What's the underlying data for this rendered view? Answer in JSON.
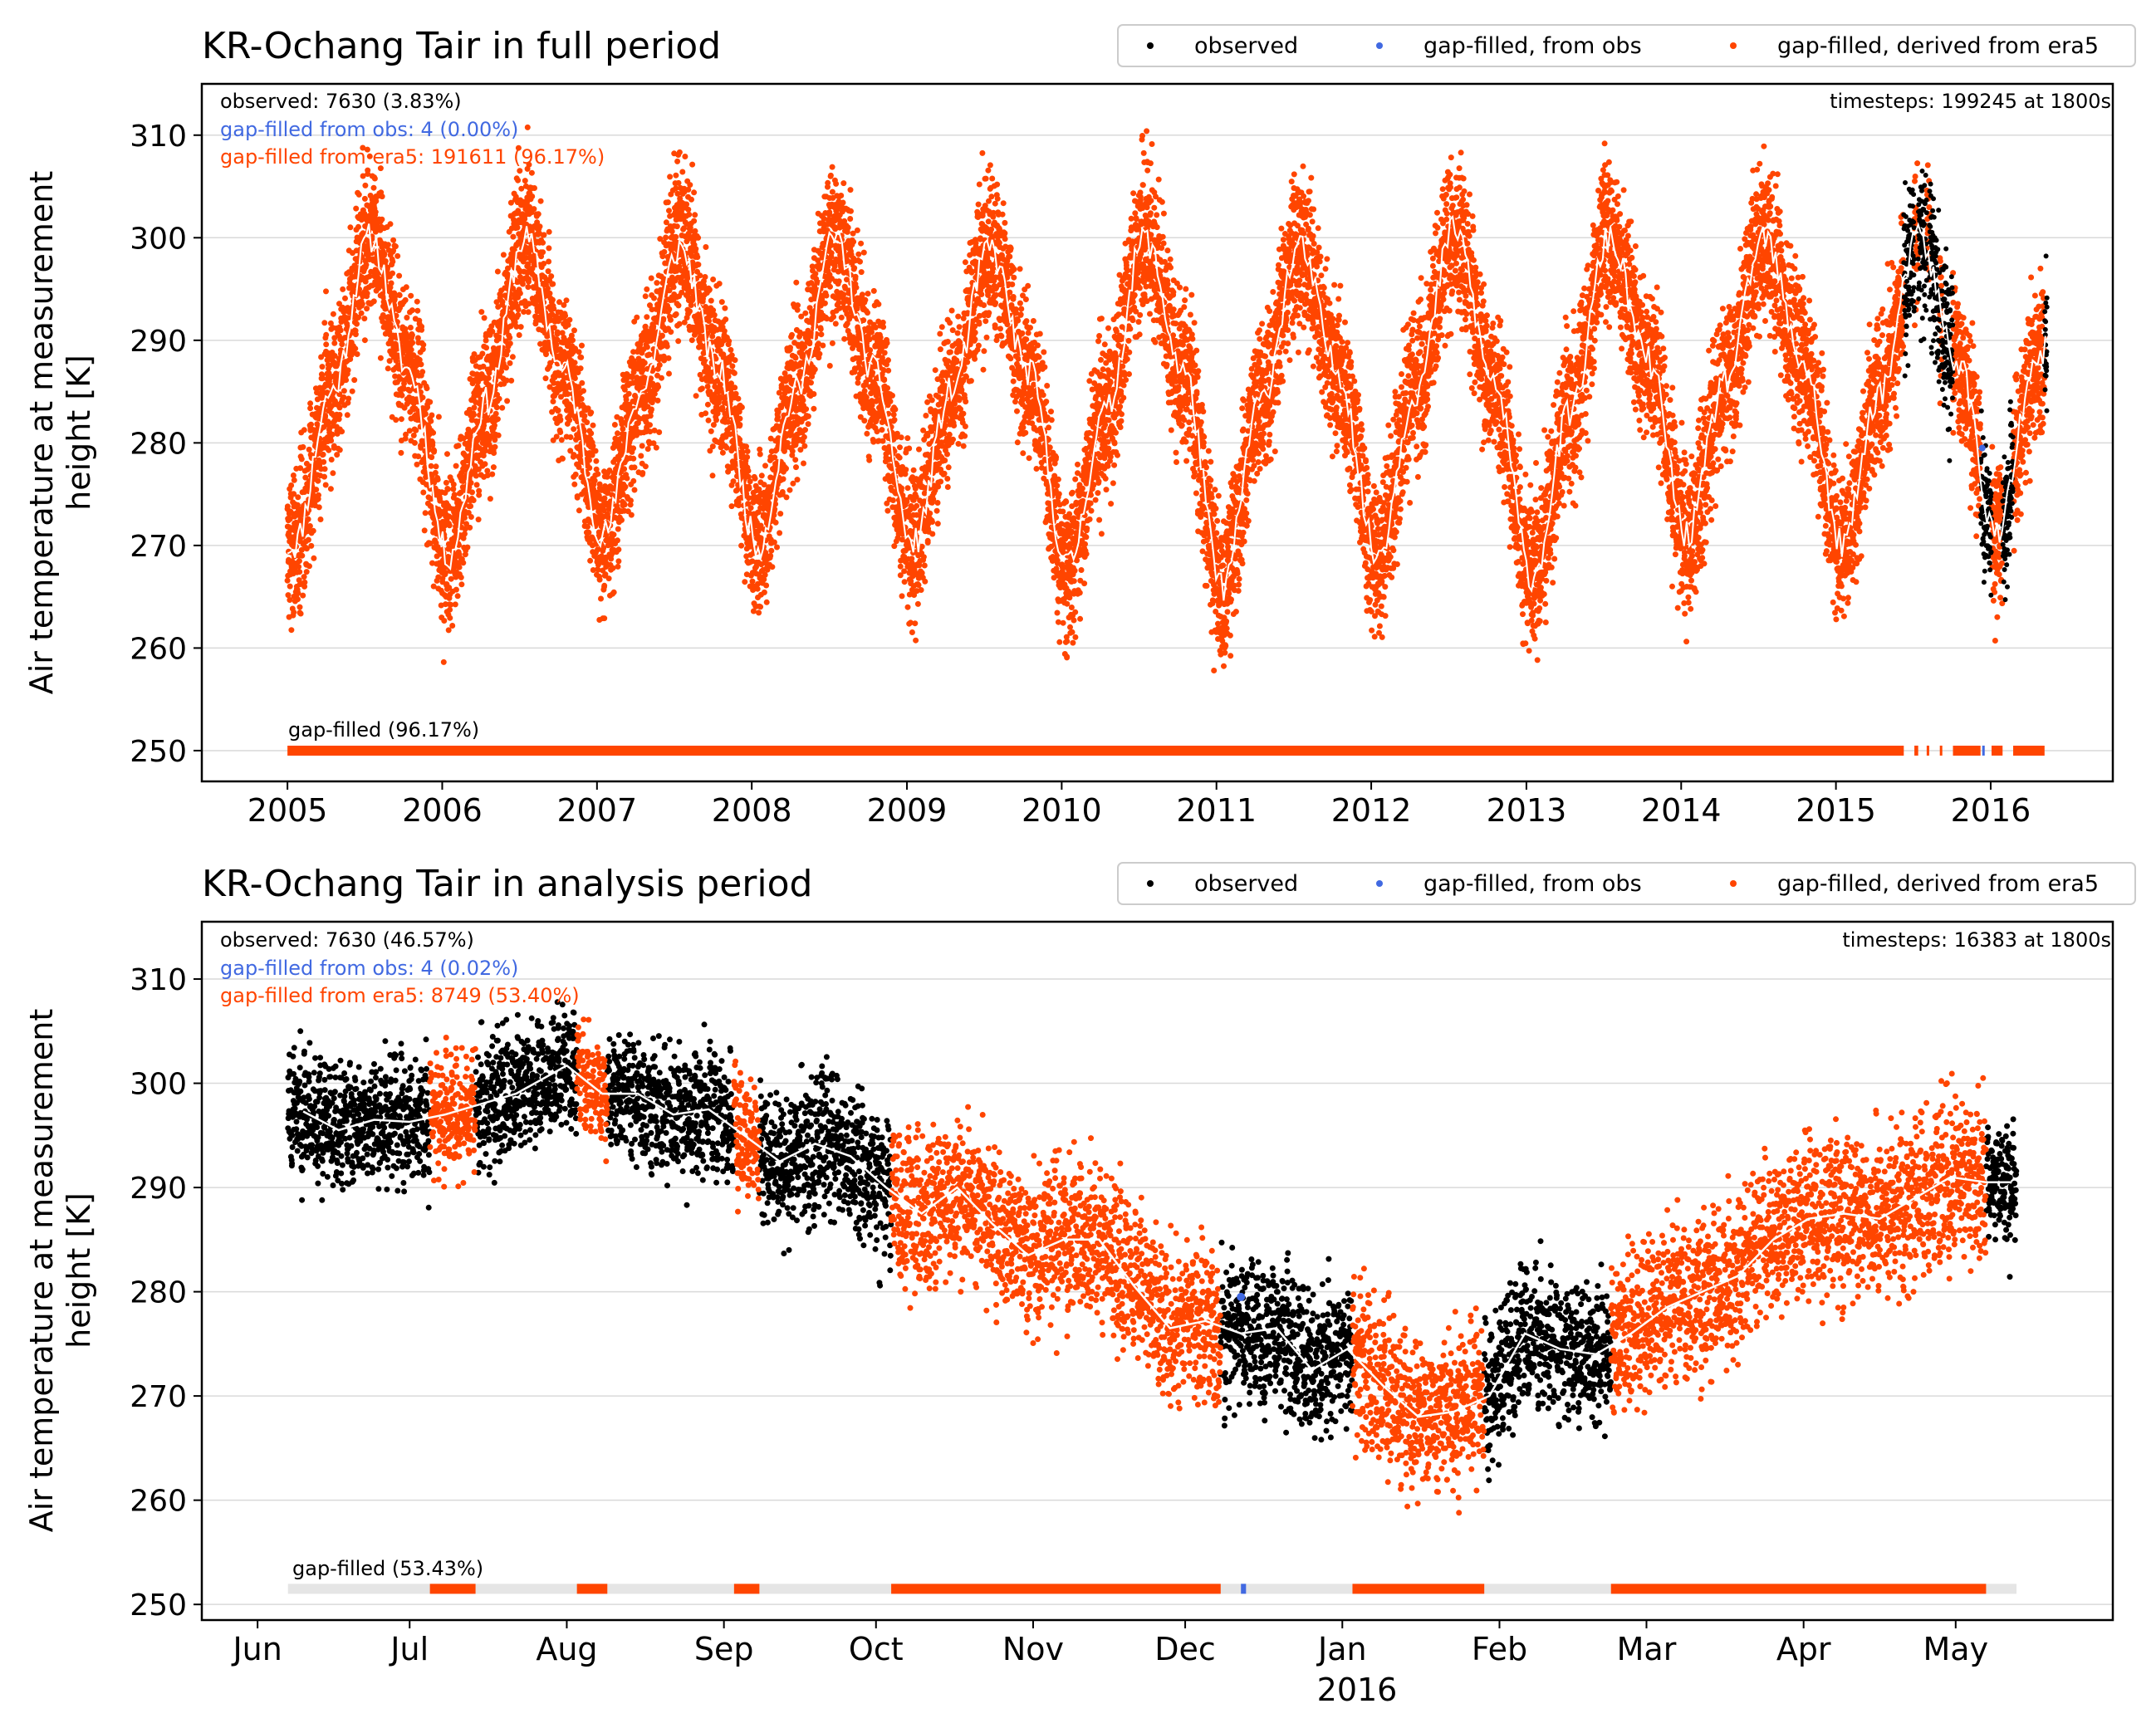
{
  "ylabel_line1": "Air temperature at measurement",
  "ylabel_line2": "height [K]",
  "legend": {
    "observed": "observed",
    "gapfill_obs": "gap-filled, from obs",
    "gapfill_era5": "gap-filled, derived from era5"
  },
  "colors": {
    "observed": "#000000",
    "gapfill_obs": "#4169e1",
    "gapfill_era5": "#ff4500",
    "smooth": "#ffffff",
    "gap_bar_bg": "#e5e5e5",
    "grid": "#d9d9d9"
  },
  "chart_data": [
    {
      "type": "scatter",
      "title": "KR-Ochang Tair in full period",
      "xlabel": "",
      "ylabel": "Air temperature at measurement height [K]",
      "xlim": [
        "2004-06-13",
        "2016-10-15"
      ],
      "ylim": [
        247,
        315
      ],
      "yticks": [
        250,
        260,
        270,
        280,
        290,
        300,
        310
      ],
      "xticks": [
        {
          "date": "2005-01-01",
          "label": "2005"
        },
        {
          "date": "2006-01-01",
          "label": "2006"
        },
        {
          "date": "2007-01-01",
          "label": "2007"
        },
        {
          "date": "2008-01-01",
          "label": "2008"
        },
        {
          "date": "2009-01-01",
          "label": "2009"
        },
        {
          "date": "2010-01-01",
          "label": "2010"
        },
        {
          "date": "2011-01-01",
          "label": "2011"
        },
        {
          "date": "2012-01-01",
          "label": "2012"
        },
        {
          "date": "2013-01-01",
          "label": "2013"
        },
        {
          "date": "2014-01-01",
          "label": "2014"
        },
        {
          "date": "2015-01-01",
          "label": "2015"
        },
        {
          "date": "2016-01-01",
          "label": "2016"
        }
      ],
      "grid": "horizontal",
      "legend_position": "top-right",
      "annotations": {
        "observed": "observed: 7630 (3.83%)",
        "gapfill_obs": "gap-filled from obs: 4 (0.00%)",
        "gapfill_era5": "gap-filled from era5: 191611 (96.17%)",
        "timesteps": "timesteps: 199245 at 1800s",
        "gap_label": "gap-filled (96.17%)"
      },
      "gap_bar_value": 250,
      "series_overview": [
        {
          "name": "gap-filled, derived from era5",
          "from": "2005-01-01",
          "to": "2015-06-01",
          "seasonal_mean_min": 269,
          "seasonal_mean_max": 301,
          "spread": 12
        },
        {
          "name": "observed",
          "from": "2015-06-10",
          "to": "2016-05-13"
        }
      ],
      "smoothed_monthly": [
        {
          "month": "2005-01",
          "value": 270
        },
        {
          "month": "2005-04",
          "value": 285
        },
        {
          "month": "2005-07",
          "value": 300
        },
        {
          "month": "2005-10",
          "value": 287
        },
        {
          "month": "2006-01",
          "value": 269
        },
        {
          "month": "2006-04",
          "value": 284
        },
        {
          "month": "2006-07",
          "value": 300
        },
        {
          "month": "2006-10",
          "value": 287
        },
        {
          "month": "2007-01",
          "value": 271
        },
        {
          "month": "2007-04",
          "value": 285
        },
        {
          "month": "2007-07",
          "value": 299
        },
        {
          "month": "2007-10",
          "value": 287
        },
        {
          "month": "2008-01",
          "value": 270
        },
        {
          "month": "2008-04",
          "value": 285
        },
        {
          "month": "2008-07",
          "value": 300
        },
        {
          "month": "2008-10",
          "value": 287
        },
        {
          "month": "2009-01",
          "value": 270
        },
        {
          "month": "2009-04",
          "value": 285
        },
        {
          "month": "2009-07",
          "value": 299
        },
        {
          "month": "2009-10",
          "value": 287
        },
        {
          "month": "2010-01",
          "value": 268
        },
        {
          "month": "2010-04",
          "value": 283
        },
        {
          "month": "2010-07",
          "value": 300
        },
        {
          "month": "2010-10",
          "value": 287
        },
        {
          "month": "2011-01",
          "value": 266
        },
        {
          "month": "2011-04",
          "value": 284
        },
        {
          "month": "2011-07",
          "value": 299
        },
        {
          "month": "2011-10",
          "value": 287
        },
        {
          "month": "2012-01",
          "value": 269
        },
        {
          "month": "2012-04",
          "value": 285
        },
        {
          "month": "2012-07",
          "value": 301
        },
        {
          "month": "2012-10",
          "value": 286
        },
        {
          "month": "2013-01",
          "value": 267
        },
        {
          "month": "2013-04",
          "value": 283
        },
        {
          "month": "2013-07",
          "value": 300
        },
        {
          "month": "2013-10",
          "value": 288
        },
        {
          "month": "2014-01",
          "value": 271
        },
        {
          "month": "2014-04",
          "value": 286
        },
        {
          "month": "2014-07",
          "value": 300
        },
        {
          "month": "2014-10",
          "value": 288
        },
        {
          "month": "2015-01",
          "value": 270
        },
        {
          "month": "2015-04",
          "value": 285
        },
        {
          "month": "2015-07",
          "value": 300
        },
        {
          "month": "2015-10",
          "value": 288
        },
        {
          "month": "2016-01",
          "value": 271
        },
        {
          "month": "2016-04",
          "value": 287
        },
        {
          "month": "2016-05",
          "value": 290
        }
      ],
      "gap_segments": [
        {
          "from": "2005-01-01",
          "to": "2015-06-10",
          "type": "era5"
        },
        {
          "from": "2015-07-05",
          "to": "2015-07-14",
          "type": "era5"
        },
        {
          "from": "2015-08-03",
          "to": "2015-08-09",
          "type": "era5"
        },
        {
          "from": "2015-09-03",
          "to": "2015-09-08",
          "type": "era5"
        },
        {
          "from": "2015-10-04",
          "to": "2015-12-08",
          "type": "era5"
        },
        {
          "from": "2015-12-12",
          "to": "2015-12-13",
          "type": "obs"
        },
        {
          "from": "2016-01-03",
          "to": "2016-01-29",
          "type": "era5"
        },
        {
          "from": "2016-02-23",
          "to": "2016-05-07",
          "type": "era5"
        }
      ]
    },
    {
      "type": "scatter",
      "title": "KR-Ochang Tair in analysis period",
      "xlabel": "",
      "ylabel": "Air temperature at measurement height [K]",
      "xlim": [
        "2015-05-21",
        "2016-06-01"
      ],
      "ylim": [
        248.5,
        315.5
      ],
      "yticks": [
        250,
        260,
        270,
        280,
        290,
        300,
        310
      ],
      "xticks": [
        {
          "date": "2015-06-01",
          "label": "Jun"
        },
        {
          "date": "2015-07-01",
          "label": "Jul"
        },
        {
          "date": "2015-08-01",
          "label": "Aug"
        },
        {
          "date": "2015-09-01",
          "label": "Sep"
        },
        {
          "date": "2015-10-01",
          "label": "Oct"
        },
        {
          "date": "2015-11-01",
          "label": "Nov"
        },
        {
          "date": "2015-12-01",
          "label": "Dec"
        },
        {
          "date": "2016-01-01",
          "label": "Jan"
        },
        {
          "date": "2016-02-01",
          "label": "Feb"
        },
        {
          "date": "2016-03-01",
          "label": "Mar"
        },
        {
          "date": "2016-04-01",
          "label": "Apr"
        },
        {
          "date": "2016-05-01",
          "label": "May"
        }
      ],
      "year_label": "2016",
      "grid": "horizontal",
      "legend_position": "top-right",
      "annotations": {
        "observed": "observed: 7630 (46.57%)",
        "gapfill_obs": "gap-filled from obs: 4 (0.02%)",
        "gapfill_era5": "gap-filled from era5: 8749 (53.40%)",
        "timesteps": "timesteps: 16383 at 1800s",
        "gap_label": "gap-filled (53.43%)"
      },
      "gap_bar_value": 251.5,
      "gap_bar_range": [
        "2015-06-07",
        "2016-05-13"
      ],
      "segments": [
        {
          "from": "2015-06-07",
          "to": "2015-07-05",
          "type": "observed",
          "mean": 296,
          "spread": 5
        },
        {
          "from": "2015-07-05",
          "to": "2015-07-14",
          "type": "era5",
          "mean": 296,
          "spread": 5
        },
        {
          "from": "2015-07-14",
          "to": "2015-08-03",
          "type": "observed",
          "mean": 300,
          "spread": 5
        },
        {
          "from": "2015-08-03",
          "to": "2015-08-09",
          "type": "era5",
          "mean": 299,
          "spread": 4
        },
        {
          "from": "2015-08-09",
          "to": "2015-09-03",
          "type": "observed",
          "mean": 297,
          "spread": 5
        },
        {
          "from": "2015-09-03",
          "to": "2015-09-08",
          "type": "era5",
          "mean": 294,
          "spread": 5
        },
        {
          "from": "2015-09-08",
          "to": "2015-10-04",
          "type": "observed",
          "mean": 292,
          "spread": 6
        },
        {
          "from": "2015-10-04",
          "to": "2015-12-08",
          "type": "era5",
          "mean": 283,
          "spread": 7
        },
        {
          "from": "2015-12-08",
          "to": "2016-01-03",
          "type": "observed",
          "mean": 273,
          "spread": 6
        },
        {
          "from": "2016-01-03",
          "to": "2016-01-29",
          "type": "era5",
          "mean": 270,
          "spread": 7
        },
        {
          "from": "2016-01-29",
          "to": "2016-02-23",
          "type": "observed",
          "mean": 274,
          "spread": 6
        },
        {
          "from": "2016-02-23",
          "to": "2016-05-07",
          "type": "era5",
          "mean": 285,
          "spread": 7
        },
        {
          "from": "2016-05-07",
          "to": "2016-05-13",
          "type": "observed",
          "mean": 291,
          "spread": 5
        }
      ],
      "gap_segments": [
        {
          "from": "2015-07-05",
          "to": "2015-07-14",
          "type": "era5"
        },
        {
          "from": "2015-08-03",
          "to": "2015-08-09",
          "type": "era5"
        },
        {
          "from": "2015-09-03",
          "to": "2015-09-08",
          "type": "era5"
        },
        {
          "from": "2015-10-04",
          "to": "2015-12-08",
          "type": "era5"
        },
        {
          "from": "2015-12-12",
          "to": "2015-12-13",
          "type": "obs"
        },
        {
          "from": "2016-01-03",
          "to": "2016-01-29",
          "type": "era5"
        },
        {
          "from": "2016-02-23",
          "to": "2016-05-07",
          "type": "era5"
        }
      ],
      "obs_gapfill_point": {
        "date": "2015-12-12",
        "value": 279.5
      },
      "smoothed": [
        {
          "date": "2015-06-10",
          "value": 297.3
        },
        {
          "date": "2015-06-17",
          "value": 295.5
        },
        {
          "date": "2015-06-24",
          "value": 296.5
        },
        {
          "date": "2015-07-01",
          "value": 296.3
        },
        {
          "date": "2015-07-08",
          "value": 297.0
        },
        {
          "date": "2015-07-15",
          "value": 298.0
        },
        {
          "date": "2015-07-22",
          "value": 299.0
        },
        {
          "date": "2015-08-01",
          "value": 301.7
        },
        {
          "date": "2015-08-08",
          "value": 299.0
        },
        {
          "date": "2015-08-15",
          "value": 299.0
        },
        {
          "date": "2015-08-22",
          "value": 297.0
        },
        {
          "date": "2015-08-29",
          "value": 297.5
        },
        {
          "date": "2015-09-05",
          "value": 295.0
        },
        {
          "date": "2015-09-12",
          "value": 292.5
        },
        {
          "date": "2015-09-19",
          "value": 294.2
        },
        {
          "date": "2015-09-26",
          "value": 293.0
        },
        {
          "date": "2015-10-03",
          "value": 290.0
        },
        {
          "date": "2015-10-10",
          "value": 287.5
        },
        {
          "date": "2015-10-17",
          "value": 290.0
        },
        {
          "date": "2015-10-24",
          "value": 286.5
        },
        {
          "date": "2015-10-31",
          "value": 283.5
        },
        {
          "date": "2015-11-07",
          "value": 285.0
        },
        {
          "date": "2015-11-14",
          "value": 285.0
        },
        {
          "date": "2015-11-21",
          "value": 280.5
        },
        {
          "date": "2015-11-28",
          "value": 276.5
        },
        {
          "date": "2015-12-05",
          "value": 277.2
        },
        {
          "date": "2015-12-12",
          "value": 276.0
        },
        {
          "date": "2015-12-19",
          "value": 276.5
        },
        {
          "date": "2015-12-26",
          "value": 272.5
        },
        {
          "date": "2016-01-02",
          "value": 274.5
        },
        {
          "date": "2016-01-09",
          "value": 271.0
        },
        {
          "date": "2016-01-16",
          "value": 268.0
        },
        {
          "date": "2016-01-23",
          "value": 268.5
        },
        {
          "date": "2016-01-30",
          "value": 270.0
        },
        {
          "date": "2016-02-06",
          "value": 276.0
        },
        {
          "date": "2016-02-13",
          "value": 274.5
        },
        {
          "date": "2016-02-20",
          "value": 274.0
        },
        {
          "date": "2016-02-27",
          "value": 276.0
        },
        {
          "date": "2016-03-05",
          "value": 278.5
        },
        {
          "date": "2016-03-12",
          "value": 280.0
        },
        {
          "date": "2016-03-19",
          "value": 281.5
        },
        {
          "date": "2016-03-26",
          "value": 285.0
        },
        {
          "date": "2016-04-02",
          "value": 287.0
        },
        {
          "date": "2016-04-09",
          "value": 287.5
        },
        {
          "date": "2016-04-16",
          "value": 287.0
        },
        {
          "date": "2016-04-23",
          "value": 289.0
        },
        {
          "date": "2016-04-30",
          "value": 291.0
        },
        {
          "date": "2016-05-07",
          "value": 290.5
        },
        {
          "date": "2016-05-12",
          "value": 290.5
        }
      ]
    }
  ]
}
